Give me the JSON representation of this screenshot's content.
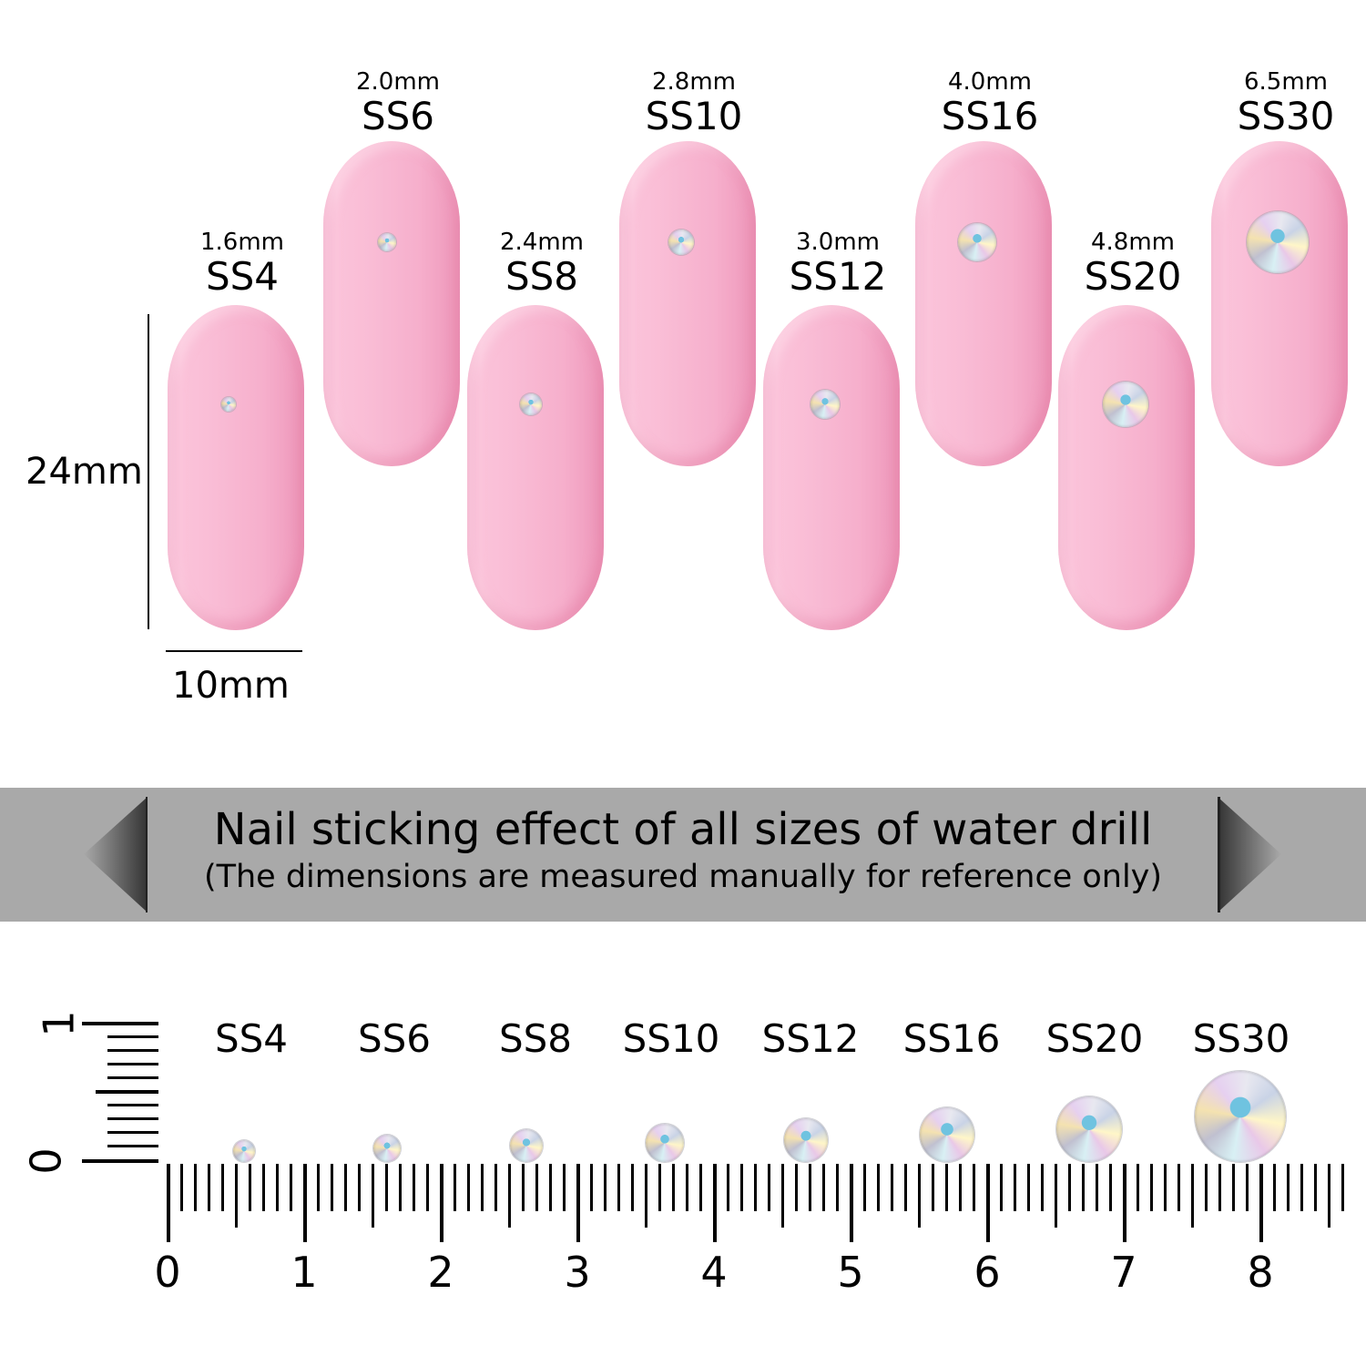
{
  "nails": [
    {
      "code": "SS4",
      "size": "1.6mm",
      "row": "low"
    },
    {
      "code": "SS6",
      "size": "2.0mm",
      "row": "high"
    },
    {
      "code": "SS8",
      "size": "2.4mm",
      "row": "low"
    },
    {
      "code": "SS10",
      "size": "2.8mm",
      "row": "high"
    },
    {
      "code": "SS12",
      "size": "3.0mm",
      "row": "low"
    },
    {
      "code": "SS16",
      "size": "4.0mm",
      "row": "high"
    },
    {
      "code": "SS20",
      "size": "4.8mm",
      "row": "low"
    },
    {
      "code": "SS30",
      "size": "6.5mm",
      "row": "high"
    }
  ],
  "dimensions": {
    "height": "24mm",
    "width": "10mm"
  },
  "banner": {
    "title": "Nail sticking effect of all sizes of water drill",
    "subtitle": "(The dimensions are measured manually for reference only)"
  },
  "ruler": {
    "labels": [
      "0",
      "1",
      "2",
      "3",
      "4",
      "5",
      "6",
      "7",
      "8"
    ],
    "vertical_labels": [
      "0",
      "1"
    ]
  },
  "colors": {
    "nail": "#f9bcd5",
    "banner": "#a9a9a9"
  }
}
